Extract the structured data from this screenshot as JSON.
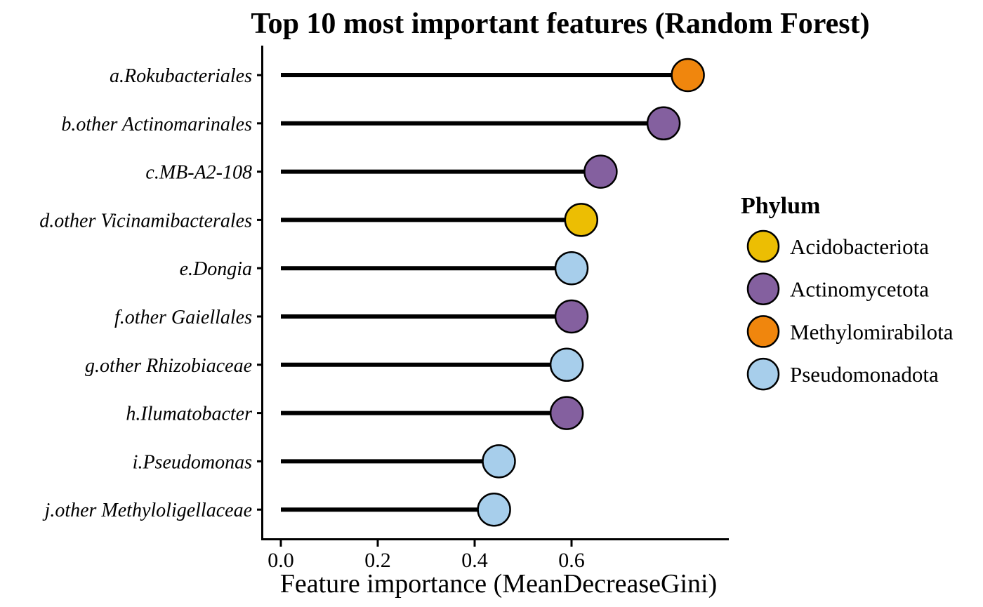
{
  "chart_data": {
    "type": "lollipop",
    "title": "Top 10 most important features (Random Forest)",
    "xlabel": "Feature importance (MeanDecreaseGini)",
    "ylabel": "",
    "legend_title": "Phylum",
    "legend_position": "right",
    "grid": false,
    "xlim": [
      0,
      0.92
    ],
    "x_ticks": [
      0.0,
      0.2,
      0.4,
      0.6
    ],
    "x_tick_labels": [
      "0.0",
      "0.2",
      "0.4",
      "0.6"
    ],
    "categories": [
      "a.Rokubacteriales",
      "b.other Actinomarinales",
      "c.MB-A2-108",
      "d.other Vicinamibacterales",
      "e.Dongia",
      "f.other Gaiellales",
      "g.other Rhizobiaceae",
      "h.Ilumatobacter",
      "i.Pseudomonas",
      "j.other Methyloligellaceae"
    ],
    "values": [
      0.84,
      0.79,
      0.66,
      0.62,
      0.6,
      0.6,
      0.59,
      0.59,
      0.45,
      0.44
    ],
    "point_phylum": [
      "Methylomirabilota",
      "Actinomycetota",
      "Actinomycetota",
      "Acidobacteriota",
      "Pseudomonadota",
      "Actinomycetota",
      "Pseudomonadota",
      "Actinomycetota",
      "Pseudomonadota",
      "Pseudomonadota"
    ],
    "legend": [
      {
        "label": "Acidobacteriota",
        "color": "#ECBE03"
      },
      {
        "label": "Actinomycetota",
        "color": "#84609F"
      },
      {
        "label": "Methylomirabilota",
        "color": "#F0860D"
      },
      {
        "label": "Pseudomonadota",
        "color": "#A7CEEB"
      }
    ],
    "colors": {
      "Acidobacteriota": "#ECBE03",
      "Actinomycetota": "#84609F",
      "Methylomirabilota": "#F0860D",
      "Pseudomonadota": "#A7CEEB"
    },
    "stick_color": "#000000"
  }
}
